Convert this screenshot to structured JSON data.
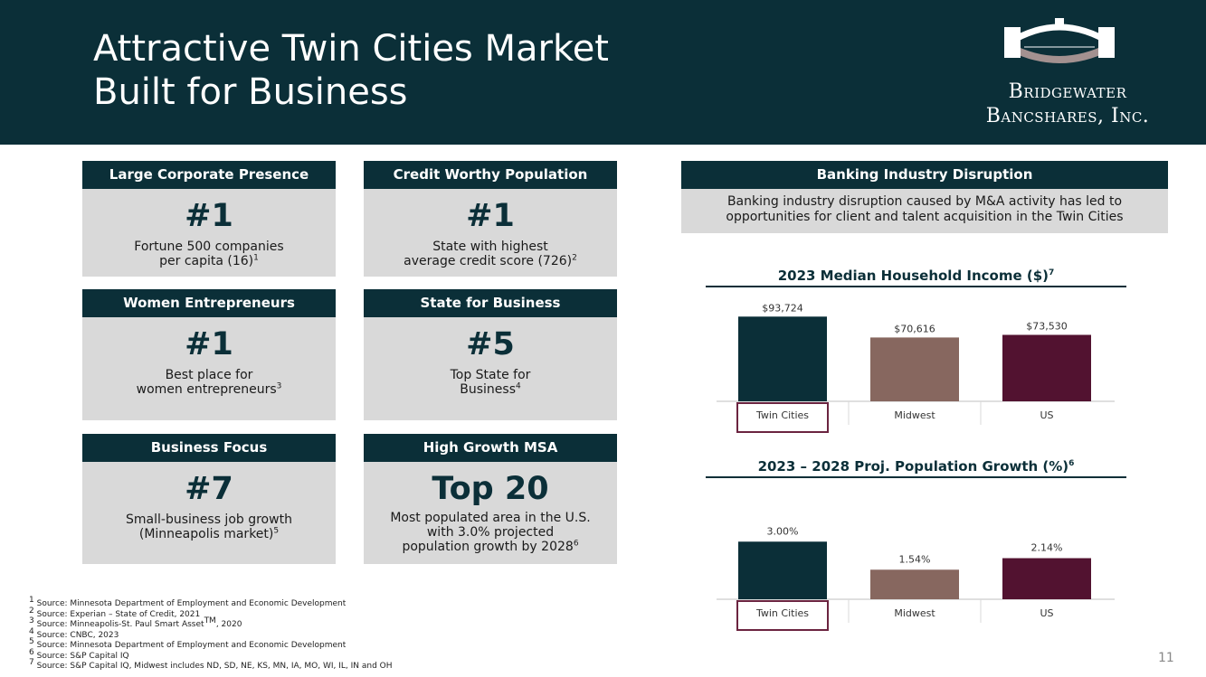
{
  "title": {
    "line1": "Attractive Twin Cities Market",
    "line2": "Built for Business"
  },
  "logo": {
    "line1": "Bridgewater",
    "line2": "Bancshares, Inc.",
    "icon": "bridge-arch-logo-icon"
  },
  "cards": [
    {
      "heading": "Large Corporate Presence",
      "big": "#1",
      "desc": [
        "Fortune 500 companies",
        "per capita (16)"
      ],
      "sup": "1"
    },
    {
      "heading": "Credit Worthy Population",
      "big": "#1",
      "desc": [
        "State with highest",
        "average credit score (726)"
      ],
      "sup": "2"
    },
    {
      "heading": "Women Entrepreneurs",
      "big": "#1",
      "desc": [
        "Best place for",
        "women entrepreneurs"
      ],
      "sup": "3"
    },
    {
      "heading": "State for Business",
      "big": "#5",
      "desc": [
        "Top State for",
        "Business"
      ],
      "sup": "4"
    },
    {
      "heading": "Business Focus",
      "big": "#7",
      "desc": [
        "Small-business job growth",
        "(Minneapolis market)"
      ],
      "sup": "5"
    },
    {
      "heading": "High Growth MSA",
      "big": "Top 20",
      "desc": [
        "Most populated area in the U.S.",
        "with 3.0% projected",
        "population growth by 2028"
      ],
      "sup": "6"
    }
  ],
  "disruption": {
    "heading": "Banking Industry Disruption",
    "line1": "Banking industry disruption caused by M&A activity has led to",
    "line2": "opportunities for client and talent acquisition in the Twin Cities"
  },
  "colors": {
    "navy": "#0b2f38",
    "taupe": "#87675f",
    "plum": "#521230",
    "highlight_border": "#6b2440"
  },
  "chart_data": [
    {
      "type": "bar",
      "title": "2023 Median Household Income ($)",
      "title_sup": "7",
      "categories": [
        "Twin Cities",
        "Midwest",
        "US"
      ],
      "values": [
        93724,
        70616,
        73530
      ],
      "labels": [
        "$93,724",
        "$70,616",
        "$73,530"
      ],
      "highlighted_category": "Twin Cities",
      "ylim": [
        0,
        100000
      ]
    },
    {
      "type": "bar",
      "title": "2023 – 2028 Proj. Population Growth (%)",
      "title_sup": "6",
      "categories": [
        "Twin Cities",
        "Midwest",
        "US"
      ],
      "values": [
        3.0,
        1.54,
        2.14
      ],
      "labels": [
        "3.00%",
        "1.54%",
        "2.14%"
      ],
      "highlighted_category": "Twin Cities",
      "ylim": [
        0,
        3.2
      ]
    }
  ],
  "footnotes": [
    {
      "num": "1",
      "text": "Source: Minnesota Department of Employment and Economic Development"
    },
    {
      "num": "2",
      "text": "Source: Experian – State of Credit, 2021"
    },
    {
      "num": "3",
      "text": "Source: Minneapolis-St. Paul Smart Asset",
      "tm": "TM",
      "after": ", 2020"
    },
    {
      "num": "4",
      "text": "Source: CNBC, 2023"
    },
    {
      "num": "5",
      "text": "Source: Minnesota Department of Employment and Economic Development"
    },
    {
      "num": "6",
      "text": "Source: S&P Capital IQ"
    },
    {
      "num": "7",
      "text": "Source: S&P Capital IQ, Midwest includes ND, SD, NE, KS, MN, IA, MO, WI, IL, IN and OH"
    }
  ],
  "page_number": "11"
}
